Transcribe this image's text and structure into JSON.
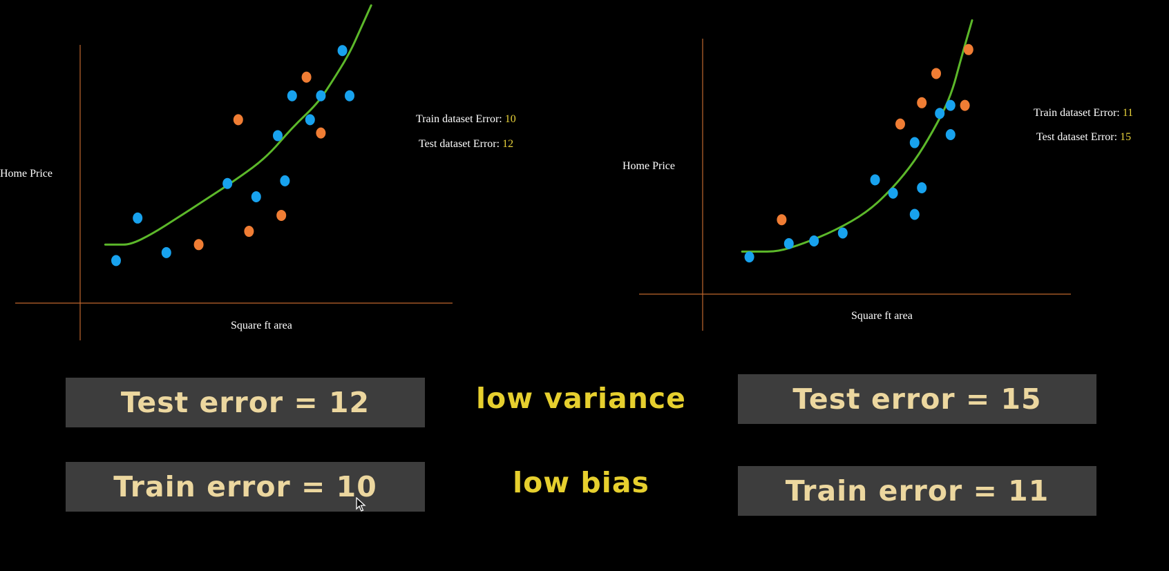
{
  "colors": {
    "background": "#000000",
    "axis": "#c0672e",
    "curve": "#5cb82a",
    "train_point": "#18a2ee",
    "test_point": "#f07d34",
    "stat_value": "#e8d23a",
    "box_bg": "#3d3d3d",
    "box_text": "#ecd79f",
    "middle_text": "#e6cf2e"
  },
  "panels": [
    {
      "ylabel": "Home Price",
      "xlabel": "Square ft area",
      "train_label": "Train dataset Error: ",
      "train_value": "10",
      "test_label": "Test dataset Error: ",
      "test_value": "12"
    },
    {
      "ylabel": "Home Price",
      "xlabel": "Square ft area",
      "train_label": "Train dataset Error: ",
      "train_value": "11",
      "test_label": "Test dataset Error: ",
      "test_value": "15"
    }
  ],
  "chart_data": [
    {
      "type": "scatter",
      "xlabel": "Square ft area",
      "ylabel": "Home Price",
      "grid": false,
      "series": [
        {
          "role": "train",
          "color": "#18a2ee",
          "x": [
            0.1,
            0.16,
            0.24,
            0.41,
            0.49,
            0.55,
            0.57,
            0.59,
            0.64,
            0.67,
            0.73,
            0.75
          ],
          "y": [
            0.16,
            0.32,
            0.19,
            0.45,
            0.4,
            0.63,
            0.46,
            0.78,
            0.69,
            0.78,
            0.95,
            0.78
          ]
        },
        {
          "role": "test",
          "color": "#f07d34",
          "x": [
            0.33,
            0.47,
            0.44,
            0.56,
            0.63,
            0.67
          ],
          "y": [
            0.22,
            0.27,
            0.69,
            0.33,
            0.85,
            0.64
          ]
        }
      ],
      "fit_curve": {
        "x": [
          0.07,
          0.1,
          0.14,
          0.2,
          0.27,
          0.35,
          0.44,
          0.52,
          0.59,
          0.66,
          0.7,
          0.75,
          0.78,
          0.81
        ],
        "y": [
          0.22,
          0.22,
          0.22,
          0.26,
          0.32,
          0.39,
          0.47,
          0.55,
          0.66,
          0.75,
          0.83,
          0.94,
          1.03,
          1.12
        ]
      }
    },
    {
      "type": "scatter",
      "xlabel": "Square ft area",
      "ylabel": "Home Price",
      "grid": false,
      "series": [
        {
          "role": "train",
          "color": "#18a2ee",
          "x": [
            0.13,
            0.24,
            0.31,
            0.39,
            0.48,
            0.53,
            0.59,
            0.59,
            0.61,
            0.66,
            0.69,
            0.69
          ],
          "y": [
            0.14,
            0.19,
            0.2,
            0.23,
            0.43,
            0.38,
            0.3,
            0.57,
            0.4,
            0.68,
            0.6,
            0.71
          ]
        },
        {
          "role": "test",
          "color": "#f07d34",
          "x": [
            0.22,
            0.55,
            0.61,
            0.65,
            0.74,
            0.73
          ],
          "y": [
            0.28,
            0.64,
            0.72,
            0.83,
            0.92,
            0.71
          ]
        }
      ],
      "fit_curve": {
        "x": [
          0.11,
          0.15,
          0.21,
          0.28,
          0.37,
          0.46,
          0.53,
          0.59,
          0.64,
          0.69,
          0.72,
          0.75
        ],
        "y": [
          0.16,
          0.16,
          0.16,
          0.19,
          0.24,
          0.31,
          0.4,
          0.5,
          0.61,
          0.74,
          0.89,
          1.03
        ]
      }
    }
  ],
  "boxes": {
    "left_test": "Test error = 12",
    "left_train": "Train error = 10",
    "right_test": "Test error = 15",
    "right_train": "Train error = 11"
  },
  "middle": {
    "variance": "low variance",
    "bias": "low bias"
  },
  "icons": {
    "cursor": "mouse-pointer-icon"
  }
}
